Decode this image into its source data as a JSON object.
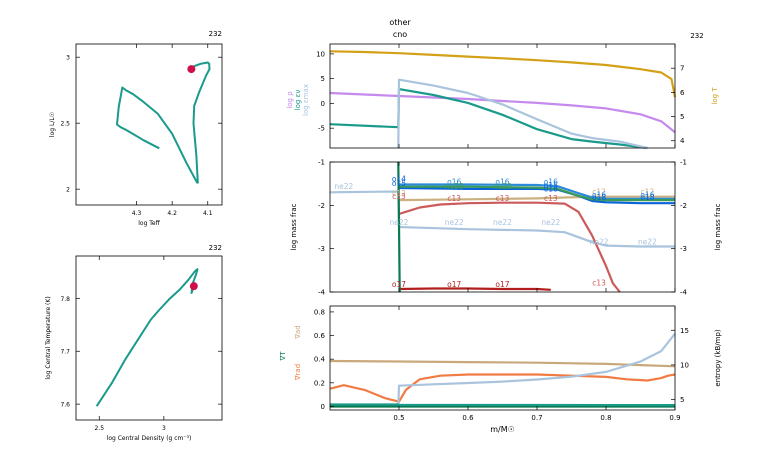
{
  "page": {
    "model_number": "232",
    "top_labels": [
      "other",
      "cno"
    ]
  },
  "colors": {
    "teal": "#1a9a8a",
    "red_dot": "#d0104c",
    "violet": "#c58aee",
    "gold": "#d4a017",
    "lightblue": "#a9c4dc",
    "darkgreen": "#0a7a50",
    "blue": "#0a63d8",
    "c12": "#cbb080",
    "o16": "#2a8ad8",
    "ne20_green": "#3a9a5a",
    "c13": "#cc5a5a",
    "o17": "#b21e1e",
    "tan": "#c9a97c",
    "orange": "#f07b43",
    "axis": "#000000"
  },
  "chart_data": [
    {
      "id": "hr",
      "type": "line",
      "title": "232",
      "xlabel": "log Teff",
      "ylabel": "log L/L☉",
      "xlim": [
        4.47,
        4.06
      ],
      "ylim": [
        1.88,
        3.1
      ],
      "xticks": [
        4.3,
        4.2,
        4.1
      ],
      "xtick_labels": [
        "4.3",
        "4.2",
        "4.1"
      ],
      "yticks": [
        2,
        2.5,
        3
      ],
      "ytick_labels": [
        "2",
        "2.5",
        "3"
      ],
      "series": [
        {
          "x": [
            4.236,
            4.28,
            4.33,
            4.345,
            4.355,
            4.35,
            4.34,
            4.33,
            4.31,
            4.28,
            4.24,
            4.2,
            4.16,
            4.13,
            4.128,
            4.132,
            4.14,
            4.138,
            4.125,
            4.105,
            4.095,
            4.096,
            4.1,
            4.12,
            4.14,
            4.148,
            4.146
          ],
          "y": [
            2.31,
            2.37,
            2.45,
            2.47,
            2.49,
            2.62,
            2.77,
            2.75,
            2.72,
            2.66,
            2.57,
            2.42,
            2.2,
            2.05,
            2.05,
            2.25,
            2.5,
            2.63,
            2.73,
            2.86,
            2.91,
            2.95,
            2.96,
            2.95,
            2.93,
            2.92,
            2.91
          ]
        }
      ],
      "marker": {
        "x": 4.146,
        "y": 2.91
      }
    },
    {
      "id": "center",
      "type": "line",
      "title": "232",
      "xlabel": "log Central Density (g cm⁻³)",
      "ylabel": "log Central Temperature (K)",
      "xlim": [
        2.32,
        3.45
      ],
      "ylim": [
        7.57,
        7.88
      ],
      "xticks": [
        2.5,
        3
      ],
      "xtick_labels": [
        "2.5",
        "3"
      ],
      "yticks": [
        7.6,
        7.7,
        7.8
      ],
      "ytick_labels": [
        "7.6",
        "7.7",
        "7.8"
      ],
      "series": [
        {
          "x": [
            2.48,
            2.6,
            2.7,
            2.8,
            2.9,
            2.96,
            3.04,
            3.12,
            3.19,
            3.24,
            3.26,
            3.25,
            3.22,
            3.215,
            3.225,
            3.235
          ],
          "y": [
            7.596,
            7.641,
            7.684,
            7.722,
            7.76,
            7.777,
            7.798,
            7.816,
            7.835,
            7.851,
            7.855,
            7.846,
            7.826,
            7.81,
            7.818,
            7.822
          ]
        }
      ],
      "marker": {
        "x": 3.232,
        "y": 7.823
      }
    },
    {
      "id": "profile-top",
      "type": "line",
      "title": "",
      "xlabel": "",
      "ylabel_left": [
        "log ρ",
        "log εν",
        "log εmax"
      ],
      "ylabel_right": "log T",
      "xlim": [
        0.4,
        0.9
      ],
      "ylim": [
        -9,
        12
      ],
      "ylim_right": [
        3.7,
        8
      ],
      "yticks": [
        -5,
        0,
        5,
        10
      ],
      "ytick_labels": [
        "-5",
        "0",
        "5",
        "10"
      ],
      "yticks_right": [
        4,
        5,
        6,
        7
      ],
      "ytick_right_labels": [
        "4",
        "5",
        "6",
        "7"
      ],
      "series": [
        {
          "name": "log ρ",
          "color": "violet",
          "axis": "left",
          "x": [
            0.4,
            0.45,
            0.5,
            0.55,
            0.6,
            0.65,
            0.7,
            0.75,
            0.8,
            0.85,
            0.88,
            0.9
          ],
          "y": [
            2.1,
            1.8,
            1.5,
            1.2,
            0.9,
            0.5,
            0.1,
            -0.4,
            -1.0,
            -2.2,
            -3.6,
            -5.8
          ]
        },
        {
          "name": "log T",
          "color": "gold",
          "axis": "right",
          "x": [
            0.4,
            0.45,
            0.5,
            0.55,
            0.6,
            0.65,
            0.7,
            0.75,
            0.8,
            0.85,
            0.88,
            0.895,
            0.9
          ],
          "y": [
            7.7,
            7.67,
            7.62,
            7.55,
            7.48,
            7.41,
            7.33,
            7.24,
            7.13,
            6.96,
            6.82,
            6.55,
            5.8
          ]
        },
        {
          "name": "log εν",
          "color": "teal",
          "axis": "left",
          "x": [
            0.4,
            0.499,
            0.5,
            0.55,
            0.6,
            0.65,
            0.7,
            0.75,
            0.78,
            0.82,
            0.86
          ],
          "y": [
            -4.2,
            -4.8,
            2.9,
            1.7,
            0.1,
            -2.3,
            -5.2,
            -7.2,
            -7.7,
            -8.3,
            -9
          ]
        },
        {
          "name": "log εmax",
          "color": "lightblue",
          "axis": "left",
          "x": [
            0.499,
            0.5,
            0.55,
            0.6,
            0.65,
            0.7,
            0.75,
            0.78,
            0.82,
            0.86
          ],
          "y": [
            -9,
            4.8,
            3.6,
            2.1,
            -0.2,
            -3.2,
            -6.1,
            -7.0,
            -7.7,
            -9
          ]
        }
      ],
      "other_labels": [
        "other",
        "cno"
      ]
    },
    {
      "id": "profile-mid",
      "type": "line",
      "title": "",
      "xlabel": "",
      "ylabel": "log mass frac",
      "ylabel_right": "log mass frac",
      "xlim": [
        0.4,
        0.9
      ],
      "ylim": [
        -4,
        -1
      ],
      "yticks": [
        -1,
        -2,
        -3,
        -4
      ],
      "ytick_labels": [
        "-1",
        "-2",
        "-3",
        "-4"
      ],
      "series": [
        {
          "name": "ne22",
          "color": "lightblue",
          "x": [
            0.4,
            0.499,
            0.5,
            0.6,
            0.7,
            0.74,
            0.78,
            0.8,
            0.85,
            0.9
          ],
          "y": [
            -1.7,
            -1.68,
            -2.5,
            -2.55,
            -2.58,
            -2.62,
            -2.85,
            -2.93,
            -2.95,
            -2.95
          ]
        },
        {
          "name": "c12",
          "color": "c12",
          "x": [
            0.5,
            0.6,
            0.7,
            0.74,
            0.78,
            0.8,
            0.85,
            0.9
          ],
          "y": [
            -1.88,
            -1.86,
            -1.84,
            -1.82,
            -1.8,
            -1.8,
            -1.8,
            -1.8
          ]
        },
        {
          "name": "o16",
          "color": "o16",
          "x": [
            0.5,
            0.6,
            0.7,
            0.73,
            0.76,
            0.78,
            0.8,
            0.85,
            0.9
          ],
          "y": [
            -1.52,
            -1.52,
            -1.53,
            -1.56,
            -1.72,
            -1.82,
            -1.85,
            -1.85,
            -1.85
          ]
        },
        {
          "name": "n14",
          "color": "blue",
          "x": [
            0.5,
            0.6,
            0.7,
            0.73,
            0.76,
            0.78,
            0.8,
            0.85,
            0.9
          ],
          "y": [
            -1.6,
            -1.62,
            -1.62,
            -1.64,
            -1.78,
            -1.9,
            -1.93,
            -1.95,
            -1.95
          ]
        },
        {
          "name": "ne20",
          "color": "ne20_green",
          "x": [
            0.5,
            0.6,
            0.7,
            0.73,
            0.76,
            0.78,
            0.8,
            0.85,
            0.9
          ],
          "y": [
            -1.57,
            -1.57,
            -1.59,
            -1.62,
            -1.78,
            -1.86,
            -1.88,
            -1.88,
            -1.88
          ]
        },
        {
          "name": "c13",
          "color": "c13",
          "x": [
            0.5,
            0.51,
            0.53,
            0.56,
            0.6,
            0.65,
            0.7,
            0.74,
            0.76,
            0.78,
            0.8,
            0.81,
            0.82
          ],
          "y": [
            -2.2,
            -2.15,
            -2.05,
            -1.98,
            -1.95,
            -1.94,
            -1.94,
            -1.96,
            -2.15,
            -2.7,
            -3.4,
            -3.8,
            -4
          ]
        },
        {
          "name": "o17",
          "color": "o17",
          "x": [
            0.5,
            0.55,
            0.6,
            0.65,
            0.7,
            0.72
          ],
          "y": [
            -3.93,
            -3.92,
            -3.92,
            -3.93,
            -3.93,
            -3.95
          ]
        },
        {
          "name": "h1",
          "color": "darkgreen",
          "x": [
            0.499,
            0.5,
            0.501
          ],
          "y": [
            -1,
            -2.4,
            -4
          ]
        }
      ],
      "labels": [
        {
          "text": "ne22",
          "x": 0.42,
          "y": -1.62,
          "color": "lightblue"
        },
        {
          "text": "o14",
          "x": 0.5,
          "y": -1.45,
          "color": "blue"
        },
        {
          "text": "o15",
          "x": 0.5,
          "y": -1.55,
          "color": "blue"
        },
        {
          "text": "o16",
          "x": 0.58,
          "y": -1.52,
          "color": "o16"
        },
        {
          "text": "o16",
          "x": 0.65,
          "y": -1.52,
          "color": "o16"
        },
        {
          "text": "o16",
          "x": 0.72,
          "y": -1.52,
          "color": "o16"
        },
        {
          "text": "ne20",
          "x": 0.58,
          "y": -1.62,
          "color": "ne20_green"
        },
        {
          "text": "ne20",
          "x": 0.65,
          "y": -1.62,
          "color": "ne20_green"
        },
        {
          "text": "n15",
          "x": 0.72,
          "y": -1.6,
          "color": "blue"
        },
        {
          "text": "o18",
          "x": 0.72,
          "y": -1.68,
          "color": "blue"
        },
        {
          "text": "c12",
          "x": 0.5,
          "y": -1.78,
          "color": "c12"
        },
        {
          "text": "c13",
          "x": 0.5,
          "y": -1.85,
          "color": "c13"
        },
        {
          "text": "c13",
          "x": 0.58,
          "y": -1.9,
          "color": "c13"
        },
        {
          "text": "c13",
          "x": 0.65,
          "y": -1.9,
          "color": "c13"
        },
        {
          "text": "c13",
          "x": 0.72,
          "y": -1.9,
          "color": "c13"
        },
        {
          "text": "ne22",
          "x": 0.5,
          "y": -2.45,
          "color": "lightblue"
        },
        {
          "text": "ne22",
          "x": 0.58,
          "y": -2.45,
          "color": "lightblue"
        },
        {
          "text": "ne22",
          "x": 0.65,
          "y": -2.45,
          "color": "lightblue"
        },
        {
          "text": "ne22",
          "x": 0.72,
          "y": -2.45,
          "color": "lightblue"
        },
        {
          "text": "ne22",
          "x": 0.79,
          "y": -2.9,
          "color": "lightblue"
        },
        {
          "text": "ne22",
          "x": 0.86,
          "y": -2.9,
          "color": "lightblue"
        },
        {
          "text": "c12",
          "x": 0.79,
          "y": -1.75,
          "color": "c12"
        },
        {
          "text": "c12",
          "x": 0.86,
          "y": -1.75,
          "color": "c12"
        },
        {
          "text": "o16",
          "x": 0.79,
          "y": -1.82,
          "color": "o16"
        },
        {
          "text": "o16",
          "x": 0.86,
          "y": -1.82,
          "color": "o16"
        },
        {
          "text": "o18",
          "x": 0.79,
          "y": -1.88,
          "color": "blue"
        },
        {
          "text": "o18",
          "x": 0.86,
          "y": -1.88,
          "color": "blue"
        },
        {
          "text": "o17",
          "x": 0.5,
          "y": -3.88,
          "color": "o17"
        },
        {
          "text": "o17",
          "x": 0.58,
          "y": -3.88,
          "color": "o17"
        },
        {
          "text": "o17",
          "x": 0.65,
          "y": -3.88,
          "color": "o17"
        },
        {
          "text": "c13",
          "x": 0.79,
          "y": -3.85,
          "color": "c13"
        }
      ]
    },
    {
      "id": "profile-bottom",
      "type": "line",
      "title": "",
      "xlabel": "m/M☉",
      "ylabel_left": [
        "∇rad",
        "∇ad",
        "∇T"
      ],
      "ylabel_right": "entropy (kB/mp)",
      "xlim": [
        0.4,
        0.9
      ],
      "ylim": [
        -0.03,
        0.85
      ],
      "ylim_right": [
        3.5,
        18.5
      ],
      "xticks": [
        0.5,
        0.6,
        0.7,
        0.8,
        0.9
      ],
      "xtick_labels": [
        "0.5",
        "0.6",
        "0.7",
        "0.8",
        "0.9"
      ],
      "yticks": [
        0,
        0.2,
        0.4,
        0.6,
        0.8
      ],
      "ytick_labels": [
        "0",
        "0.2",
        "0.4",
        "0.6",
        "0.8"
      ],
      "yticks_right": [
        5,
        10,
        15
      ],
      "ytick_right_labels": [
        "5",
        "10",
        "15"
      ],
      "series": [
        {
          "name": "∇ad",
          "color": "tan",
          "axis": "left",
          "x": [
            0.4,
            0.5,
            0.6,
            0.7,
            0.8,
            0.85,
            0.9
          ],
          "y": [
            0.385,
            0.38,
            0.375,
            0.37,
            0.36,
            0.35,
            0.34
          ]
        },
        {
          "name": "∇rad",
          "color": "orange",
          "axis": "left",
          "x": [
            0.4,
            0.42,
            0.45,
            0.48,
            0.5,
            0.51,
            0.53,
            0.56,
            0.6,
            0.65,
            0.7,
            0.75,
            0.8,
            0.83,
            0.86,
            0.88,
            0.89,
            0.9
          ],
          "y": [
            0.15,
            0.18,
            0.14,
            0.07,
            0.04,
            0.14,
            0.23,
            0.26,
            0.27,
            0.27,
            0.27,
            0.26,
            0.25,
            0.23,
            0.22,
            0.24,
            0.26,
            0.27
          ]
        },
        {
          "name": "∇T",
          "color": "darkgreen",
          "axis": "left",
          "x": [
            0.4,
            0.5,
            0.6,
            0.7,
            0.8,
            0.9
          ],
          "y": [
            0.0,
            0.0,
            0.0,
            0.0,
            0.0,
            0.0
          ]
        },
        {
          "name": "entropy",
          "color": "lightblue",
          "axis": "right",
          "x": [
            0.499,
            0.5,
            0.55,
            0.6,
            0.65,
            0.7,
            0.75,
            0.8,
            0.85,
            0.88,
            0.9
          ],
          "y": [
            4.2,
            7.0,
            7.2,
            7.4,
            7.6,
            7.9,
            8.3,
            9.0,
            10.5,
            12.0,
            14.5
          ]
        },
        {
          "name": "entropy-right",
          "color": "teal",
          "axis": "right",
          "x": [
            0.4,
            0.499,
            0.5,
            0.9
          ],
          "y": [
            4.3,
            4.3,
            4.25,
            4.2
          ]
        }
      ]
    }
  ]
}
